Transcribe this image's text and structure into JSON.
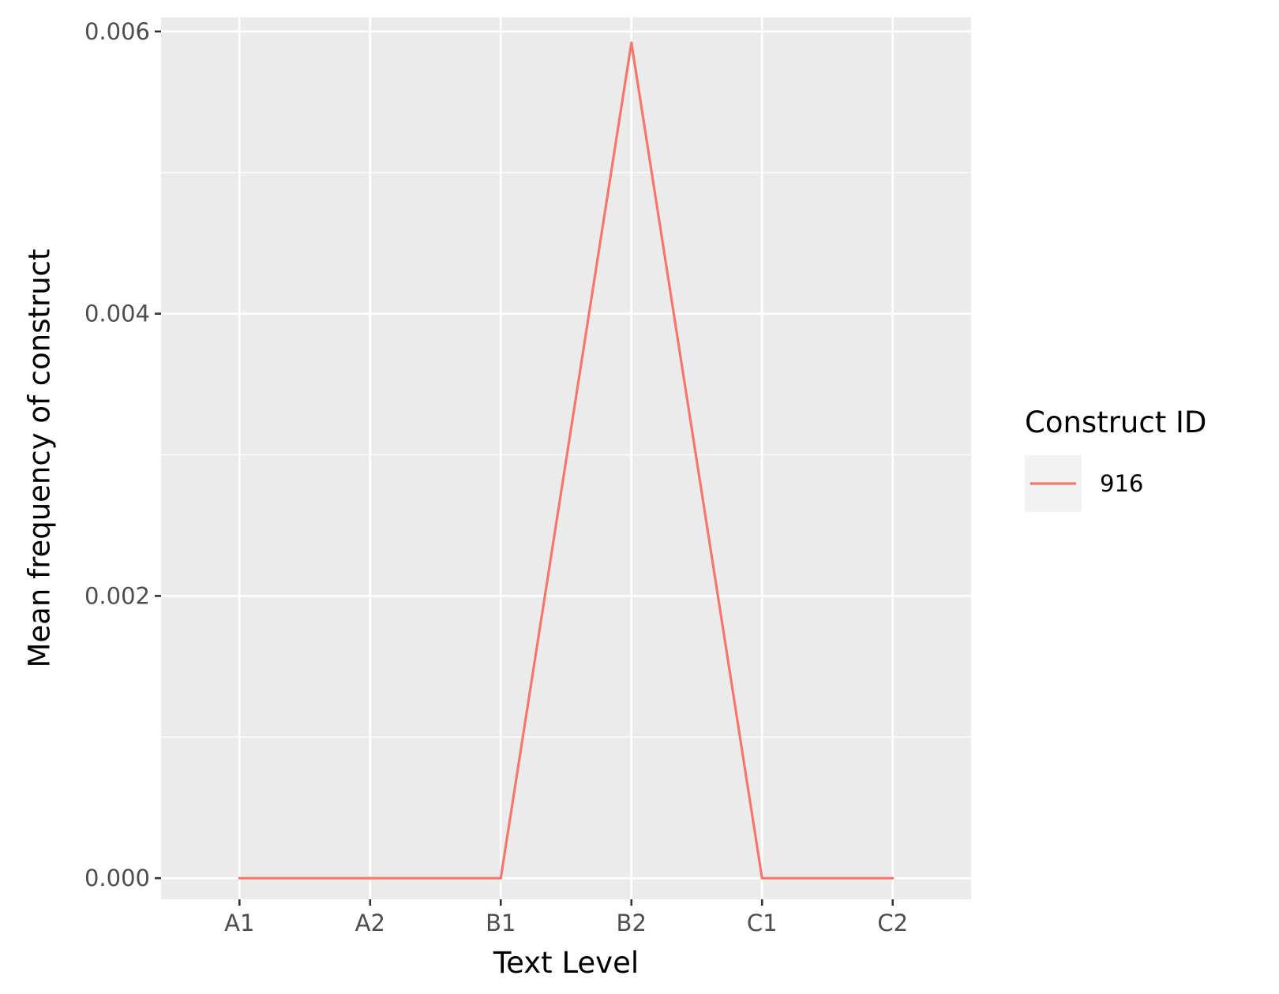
{
  "chart_data": {
    "type": "line",
    "title": "",
    "xlabel": "Text Level",
    "ylabel": "Mean frequency of construct",
    "categories": [
      "A1",
      "A2",
      "B1",
      "B2",
      "C1",
      "C2"
    ],
    "ylim": [
      -0.00015,
      0.0061
    ],
    "yticks": [
      0.0,
      0.002,
      0.004,
      0.006
    ],
    "ytick_labels": [
      "0.000",
      "0.002",
      "0.004",
      "0.006"
    ],
    "grid": true,
    "legend": {
      "title": "Construct ID",
      "position": "right"
    },
    "series": [
      {
        "name": "916",
        "values": [
          0.0,
          0.0,
          0.0,
          0.00592,
          0.0,
          0.0
        ],
        "color": "#F8766D"
      }
    ]
  },
  "colors": {
    "panel_background": "#EBEBEB",
    "grid_major": "#FFFFFF",
    "tick_text": "#4D4D4D",
    "legend_key_background": "#F2F2F2"
  }
}
